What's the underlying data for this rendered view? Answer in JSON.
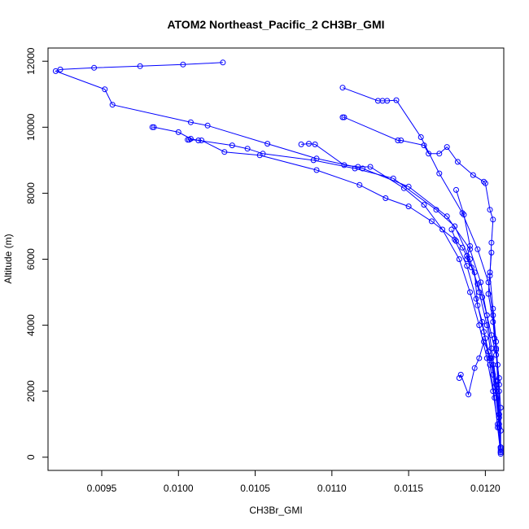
{
  "chart_data": {
    "type": "line",
    "title": "ATOM2 Northeast_Pacific_2 CH3Br_GMI",
    "xlabel": "CH3Br_GMI",
    "ylabel": "Altitude (m)",
    "xlim": [
      0.00915,
      0.01212
    ],
    "ylim": [
      -400,
      12400
    ],
    "xticks": [
      0.0095,
      0.01,
      0.0105,
      0.011,
      0.0115,
      0.012
    ],
    "xtick_labels": [
      "0.0095",
      "0.0100",
      "0.0105",
      "0.0110",
      "0.0115",
      "0.0120"
    ],
    "yticks": [
      0,
      2000,
      4000,
      6000,
      8000,
      10000,
      12000
    ],
    "ytick_labels": [
      "0",
      "2000",
      "4000",
      "6000",
      "8000",
      "10000",
      "12000"
    ],
    "grid": false,
    "marker": "open-circle",
    "color": "#0000ff",
    "series": [
      {
        "x": [
          0.01029,
          0.01003,
          0.00975,
          0.00945,
          0.00923,
          0.0092,
          0.00952,
          0.00957,
          0.01008,
          0.01019,
          0.01058,
          0.0109,
          0.0112,
          0.0115,
          0.01175,
          0.0119,
          0.01197,
          0.01201,
          0.01204,
          0.01207,
          0.01209,
          0.0121
        ],
        "y": [
          11960,
          11900,
          11850,
          11800,
          11750,
          11700,
          11150,
          10680,
          10150,
          10050,
          9500,
          9050,
          8750,
          8200,
          7300,
          6300,
          5300,
          4300,
          3300,
          2300,
          1300,
          200
        ]
      },
      {
        "x": [
          0.01107,
          0.0113,
          0.01133,
          0.01136,
          0.01142,
          0.01158,
          0.0117,
          0.01185,
          0.01195,
          0.01202,
          0.01205,
          0.01207,
          0.01208,
          0.01209,
          0.0121
        ],
        "y": [
          11200,
          10800,
          10800,
          10800,
          10820,
          9700,
          8600,
          7400,
          6300,
          5300,
          4300,
          3300,
          2300,
          1300,
          250
        ]
      },
      {
        "x": [
          0.00983,
          0.00984,
          0.01,
          0.01008,
          0.01013,
          0.01035,
          0.01045,
          0.01055,
          0.01088,
          0.01115,
          0.0114,
          0.01168,
          0.0118,
          0.0119,
          0.01196,
          0.01201,
          0.01204,
          0.01207,
          0.01209,
          0.0121
        ],
        "y": [
          10000,
          10000,
          9850,
          9650,
          9600,
          9450,
          9350,
          9200,
          9000,
          8750,
          8450,
          7500,
          7000,
          6000,
          5000,
          4000,
          3000,
          2000,
          1000,
          150
        ]
      },
      {
        "x": [
          0.01107,
          0.01108,
          0.01143,
          0.01145,
          0.0116,
          0.01163,
          0.0117,
          0.01175,
          0.01182,
          0.01192,
          0.01199,
          0.012,
          0.01203,
          0.01205,
          0.01204,
          0.01203,
          0.01205,
          0.01207,
          0.01209,
          0.0121
        ],
        "y": [
          10300,
          10300,
          9600,
          9600,
          9450,
          9200,
          9200,
          9400,
          8950,
          8550,
          8350,
          8300,
          7500,
          7200,
          6500,
          5500,
          4500,
          3500,
          2000,
          300
        ]
      },
      {
        "x": [
          0.01006,
          0.01007,
          0.01015,
          0.0103,
          0.01053,
          0.0109,
          0.01118,
          0.01135,
          0.0115,
          0.01165,
          0.0118,
          0.01188,
          0.01194,
          0.01199,
          0.01203,
          0.01206,
          0.01208,
          0.0121
        ],
        "y": [
          9620,
          9620,
          9600,
          9250,
          9150,
          8700,
          8250,
          7850,
          7600,
          7150,
          6600,
          5800,
          4800,
          3800,
          2800,
          1800,
          900,
          100
        ]
      },
      {
        "x": [
          0.0108,
          0.01085,
          0.01089,
          0.01108,
          0.01117,
          0.01125,
          0.01147,
          0.0116,
          0.01172,
          0.01183,
          0.0119,
          0.01196,
          0.01201,
          0.01205,
          0.01208,
          0.0121
        ],
        "y": [
          9480,
          9500,
          9480,
          8850,
          8800,
          8800,
          8150,
          7650,
          6900,
          6000,
          5000,
          4000,
          3000,
          2000,
          1000,
          150
        ]
      },
      {
        "x": [
          0.01181,
          0.01186,
          0.0119,
          0.01188,
          0.01193,
          0.01195,
          0.01198,
          0.012,
          0.01203,
          0.01205,
          0.01207,
          0.01209,
          0.0121
        ],
        "y": [
          8100,
          7350,
          6400,
          6000,
          5600,
          4600,
          4100,
          3600,
          3000,
          2500,
          1800,
          900,
          150
        ]
      },
      {
        "x": [
          0.01183,
          0.01184,
          0.01189,
          0.01193,
          0.01196,
          0.01199,
          0.01202,
          0.01205,
          0.01207,
          0.01209,
          0.0121
        ],
        "y": [
          2400,
          2500,
          1900,
          2700,
          3000,
          3500,
          3200,
          2800,
          2200,
          1200,
          300
        ]
      },
      {
        "x": [
          0.01178,
          0.01181,
          0.01185,
          0.01188,
          0.01191,
          0.01195,
          0.01198,
          0.01201,
          0.01204,
          0.01207,
          0.01209
        ],
        "y": [
          6900,
          6550,
          6350,
          6100,
          5750,
          5250,
          4850,
          4300,
          3700,
          3100,
          2400
        ]
      },
      {
        "x": [
          0.01204,
          0.01203,
          0.01202,
          0.01205,
          0.01206,
          0.01207,
          0.01208,
          0.01209,
          0.0121,
          0.0121,
          0.0121
        ],
        "y": [
          6200,
          5600,
          4950,
          4100,
          3600,
          3250,
          2800,
          2200,
          1500,
          800,
          300
        ]
      }
    ]
  }
}
